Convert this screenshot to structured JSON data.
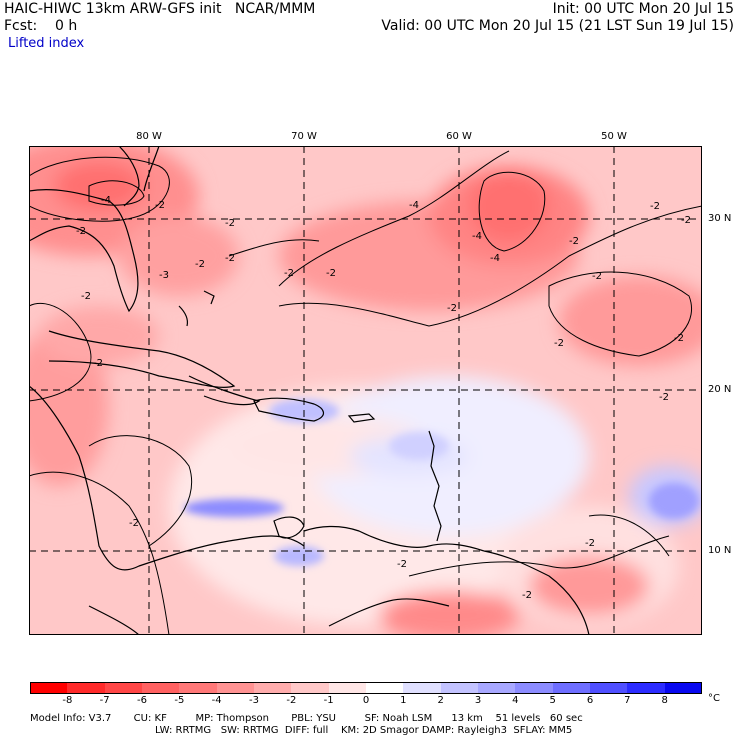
{
  "header": {
    "model_title": "HAIC-HIWC 13km ARW-GFS init   NCAR/MMM",
    "init_time": "Init: 00 UTC Mon 20 Jul 15",
    "forecast_hour": "Fcst:    0 h",
    "valid_time": "Valid: 00 UTC Mon 20 Jul 15 (21 LST Sun 19 Jul 15)",
    "field_name": "Lifted index"
  },
  "axes": {
    "longitude_labels": [
      "80 W",
      "70 W",
      "60 W",
      "50 W"
    ],
    "latitude_labels": [
      "30 N",
      "20 N",
      "10 N"
    ]
  },
  "contour_labels": [
    "-4",
    "-2",
    "-2",
    "-2",
    "-2",
    "-2",
    "-2",
    "-3",
    "-2",
    "-2",
    "-4",
    "-2",
    "-4",
    "-4",
    "-2",
    "-2",
    "-2",
    "-2",
    "-2",
    "-2",
    "-2",
    "-2",
    "-2",
    "-2",
    "-2",
    "-2"
  ],
  "colorbar": {
    "unit": "°C",
    "tick_labels": [
      "-8",
      "-7",
      "-6",
      "-5",
      "-4",
      "-3",
      "-2",
      "-1",
      "0",
      "1",
      "2",
      "3",
      "4",
      "5",
      "6",
      "7",
      "8"
    ],
    "colors": [
      "#ff0000",
      "#ff2a2a",
      "#ff4646",
      "#ff6161",
      "#ff7878",
      "#ff9393",
      "#ffadad",
      "#ffc8c8",
      "#ffe6e6",
      "#ffffff",
      "#e0e0ff",
      "#c3c3ff",
      "#a8a8ff",
      "#8c8cff",
      "#6e6eff",
      "#5050ff",
      "#2c2cff",
      "#0808f0"
    ]
  },
  "footer": {
    "line1": "Model Info: V3.7       CU: KF         MP: Thompson       PBL: YSU         SF: Noah LSM      13 km    51 levels   60 sec",
    "line2": "LW: RRTMG   SW: RRTMG  DIFF: full    KM: 2D Smagor DAMP: Rayleigh3  SFLAY: MM5"
  }
}
